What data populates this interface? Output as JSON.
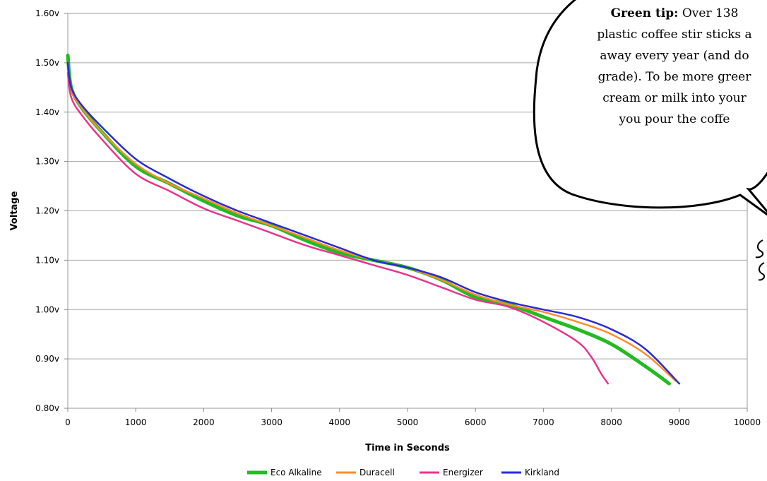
{
  "chart_data": {
    "type": "line",
    "title": "",
    "xlabel": "Time in Seconds",
    "ylabel": "Voltage",
    "xlim": [
      0,
      10000
    ],
    "ylim": [
      0.8,
      1.6
    ],
    "grid": true,
    "legend_position": "bottom",
    "x_ticks": [
      "0",
      "1000",
      "2000",
      "3000",
      "4000",
      "5000",
      "6000",
      "7000",
      "8000",
      "9000",
      "10000"
    ],
    "y_ticks": [
      "0.80v",
      "0.90v",
      "1.00v",
      "1.10v",
      "1.20v",
      "1.30v",
      "1.40v",
      "1.50v",
      "1.60v"
    ],
    "series": [
      {
        "name": "Eco Alkaline",
        "color": "#22bb22",
        "x": [
          0,
          50,
          200,
          500,
          1000,
          1500,
          2000,
          2500,
          3000,
          3500,
          4000,
          4500,
          5000,
          5500,
          6000,
          6500,
          7000,
          7500,
          8000,
          8500,
          8850
        ],
        "y": [
          1.515,
          1.45,
          1.41,
          1.36,
          1.29,
          1.255,
          1.22,
          1.19,
          1.17,
          1.14,
          1.115,
          1.1,
          1.085,
          1.06,
          1.025,
          1.01,
          0.985,
          0.96,
          0.93,
          0.885,
          0.85
        ]
      },
      {
        "name": "Duracell",
        "color": "#ff8c2a",
        "x": [
          0,
          50,
          200,
          500,
          1000,
          1500,
          2000,
          2500,
          3000,
          3500,
          4000,
          4500,
          5000,
          5500,
          6000,
          6500,
          7000,
          7500,
          8000,
          8500,
          8950
        ],
        "y": [
          1.5,
          1.445,
          1.41,
          1.36,
          1.295,
          1.255,
          1.225,
          1.195,
          1.17,
          1.145,
          1.12,
          1.1,
          1.085,
          1.06,
          1.03,
          1.01,
          0.995,
          0.975,
          0.95,
          0.91,
          0.855
        ]
      },
      {
        "name": "Energizer",
        "color": "#e8358c",
        "x": [
          0,
          50,
          200,
          500,
          1000,
          1500,
          2000,
          2500,
          3000,
          3500,
          4000,
          4500,
          5000,
          5500,
          6000,
          6500,
          7000,
          7500,
          7700,
          7850,
          7950
        ],
        "y": [
          1.48,
          1.43,
          1.395,
          1.345,
          1.275,
          1.24,
          1.205,
          1.18,
          1.155,
          1.13,
          1.11,
          1.09,
          1.07,
          1.045,
          1.02,
          1.005,
          0.975,
          0.935,
          0.905,
          0.87,
          0.85
        ]
      },
      {
        "name": "Kirkland",
        "color": "#2a2ad8",
        "x": [
          0,
          50,
          200,
          500,
          1000,
          1500,
          2000,
          2500,
          3000,
          3500,
          4000,
          4500,
          5000,
          5500,
          6000,
          6500,
          7000,
          7500,
          8000,
          8500,
          9000
        ],
        "y": [
          1.5,
          1.45,
          1.415,
          1.37,
          1.305,
          1.265,
          1.23,
          1.2,
          1.175,
          1.15,
          1.125,
          1.1,
          1.085,
          1.065,
          1.035,
          1.015,
          1.0,
          0.985,
          0.96,
          0.92,
          0.85
        ]
      }
    ]
  },
  "annotation": {
    "lines": [
      {
        "bold": "Green tip:",
        "rest": " Over 138"
      },
      {
        "bold": "",
        "rest": "plastic coffee stir sticks a"
      },
      {
        "bold": "",
        "rest": "away every year (and do"
      },
      {
        "bold": "",
        "rest": "grade). To be more greer"
      },
      {
        "bold": "",
        "rest": "cream or milk into your"
      },
      {
        "bold": "",
        "rest": "you pour the coffe"
      }
    ]
  }
}
